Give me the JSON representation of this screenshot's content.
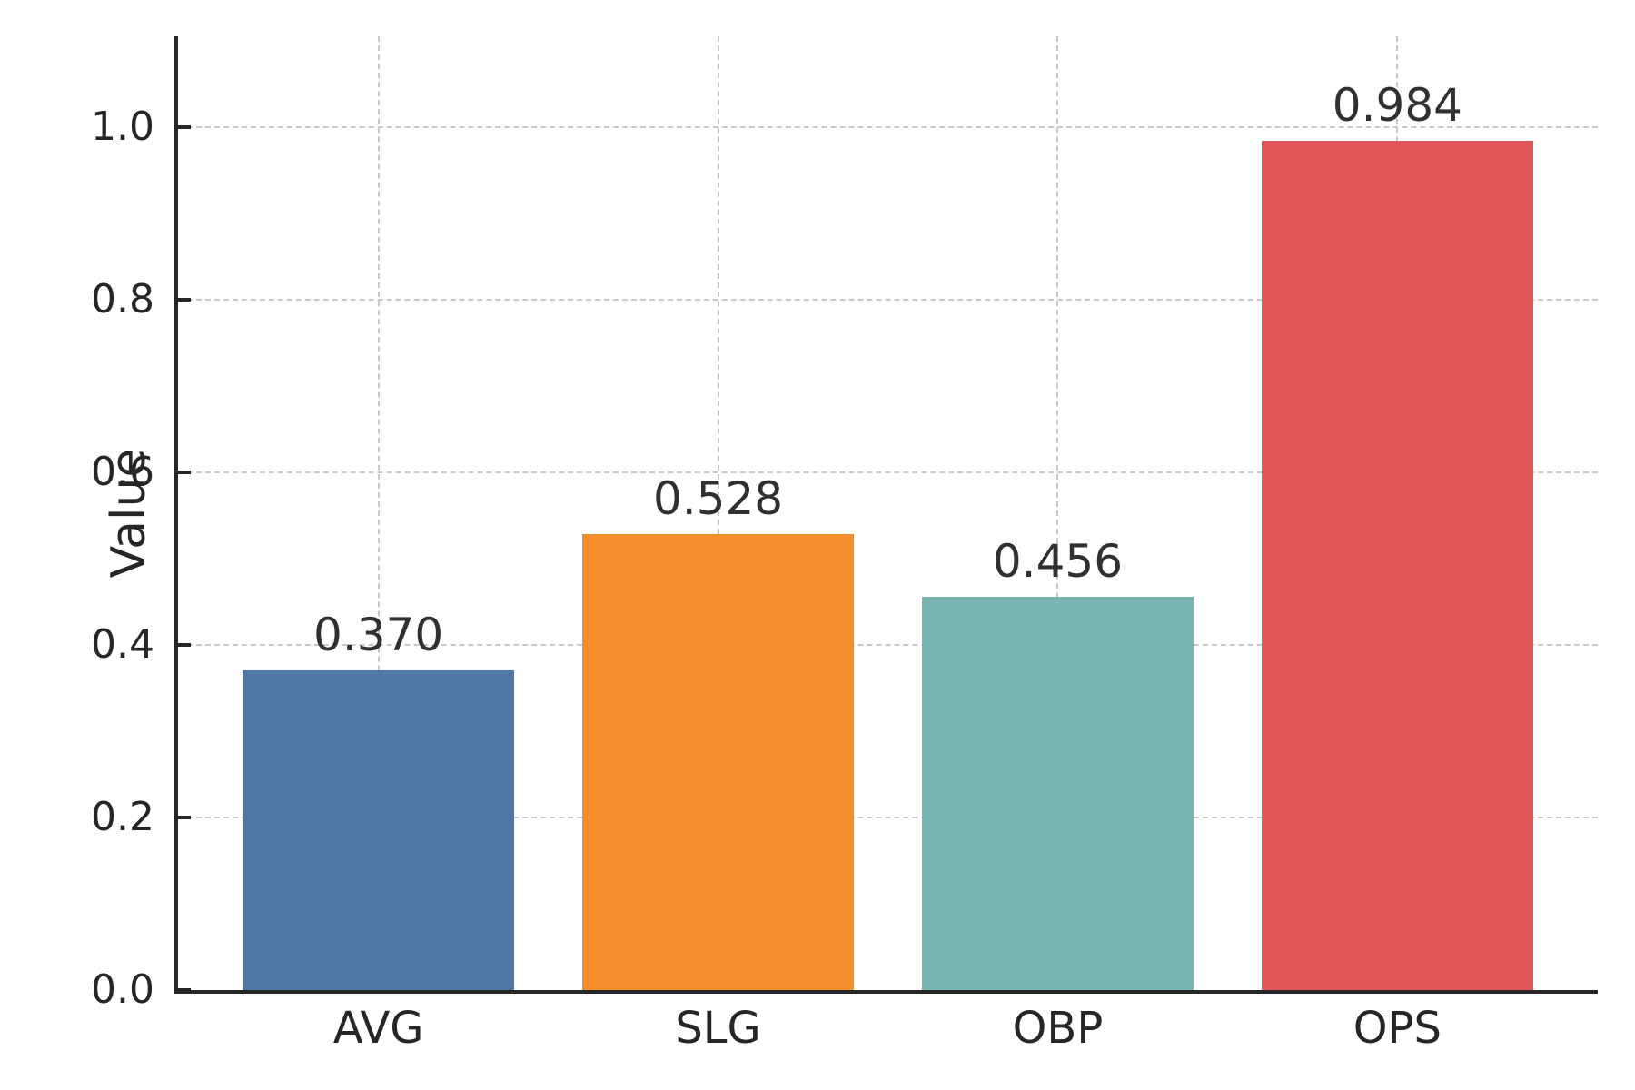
{
  "chart_data": {
    "type": "bar",
    "categories": [
      "AVG",
      "SLG",
      "OBP",
      "OPS"
    ],
    "values": [
      0.37,
      0.528,
      0.456,
      0.984
    ],
    "value_labels": [
      "0.370",
      "0.528",
      "0.456",
      "0.984"
    ],
    "title": "",
    "xlabel": "",
    "ylabel": "Value",
    "ylim": [
      0,
      1.105
    ],
    "yticks": [
      0.0,
      0.2,
      0.4,
      0.6,
      0.8,
      1.0
    ],
    "ytick_labels": [
      "0.0",
      "0.2",
      "0.4",
      "0.6",
      "0.8",
      "1.0"
    ],
    "grid": true,
    "grid_style": "dashed",
    "legend": "none",
    "bar_colors": [
      "#4E79A7",
      "#F28E2B",
      "#76B7B2",
      "#E15759"
    ]
  },
  "style_colors": {
    "spine": "#262626",
    "grid": "#c9c9c9",
    "tick_text": "#262626",
    "value_text": "#303030",
    "background": "#ffffff"
  }
}
